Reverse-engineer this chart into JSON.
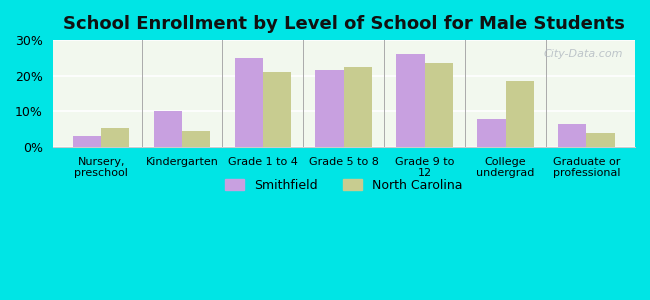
{
  "title": "School Enrollment by Level of School for Male Students",
  "categories": [
    "Nursery,\npreschool",
    "Kindergarten",
    "Grade 1 to 4",
    "Grade 5 to 8",
    "Grade 9 to\n12",
    "College\nundergrad",
    "Graduate or\nprofessional"
  ],
  "smithfield": [
    3.0,
    10.0,
    25.0,
    21.5,
    26.0,
    8.0,
    6.5
  ],
  "north_carolina": [
    5.5,
    4.5,
    21.0,
    22.5,
    23.5,
    18.5,
    4.0
  ],
  "smithfield_color": "#c8a0e0",
  "nc_color": "#c8cc90",
  "background_outer": "#00e5e5",
  "background_inner": "#f2f8ee",
  "ylim": [
    0,
    30
  ],
  "yticks": [
    0,
    10,
    20,
    30
  ],
  "ytick_labels": [
    "0%",
    "10%",
    "20%",
    "30%"
  ],
  "legend_smithfield": "Smithfield",
  "legend_nc": "North Carolina",
  "bar_width": 0.35,
  "title_fontsize": 13,
  "watermark": "City-Data.com"
}
